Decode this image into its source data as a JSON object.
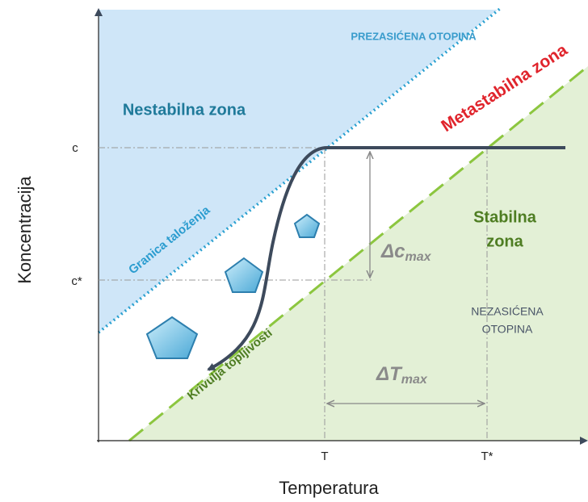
{
  "labels": {
    "supersaturated": "PREZASIĆENA OTOPINA",
    "metastable": "Metastabilna zona",
    "unstable": "Nestabilna zona",
    "precipitation_limit": "Granica taloženja",
    "stable_line1": "Stabilna",
    "stable_line2": "zona",
    "delta_c": "Δc",
    "delta_c_sub": "max",
    "delta_t": "ΔT",
    "delta_t_sub": "max",
    "unsaturated_line1": "NEZASIĆENA",
    "unsaturated_line2": "OTOPINA",
    "solubility_curve": "Krivulja topljivosti"
  },
  "axes": {
    "y_title": "Koncentracija",
    "x_title": "Temperatura",
    "y_ticks": [
      "c",
      "c*"
    ],
    "x_ticks": [
      "T",
      "T*"
    ]
  }
}
